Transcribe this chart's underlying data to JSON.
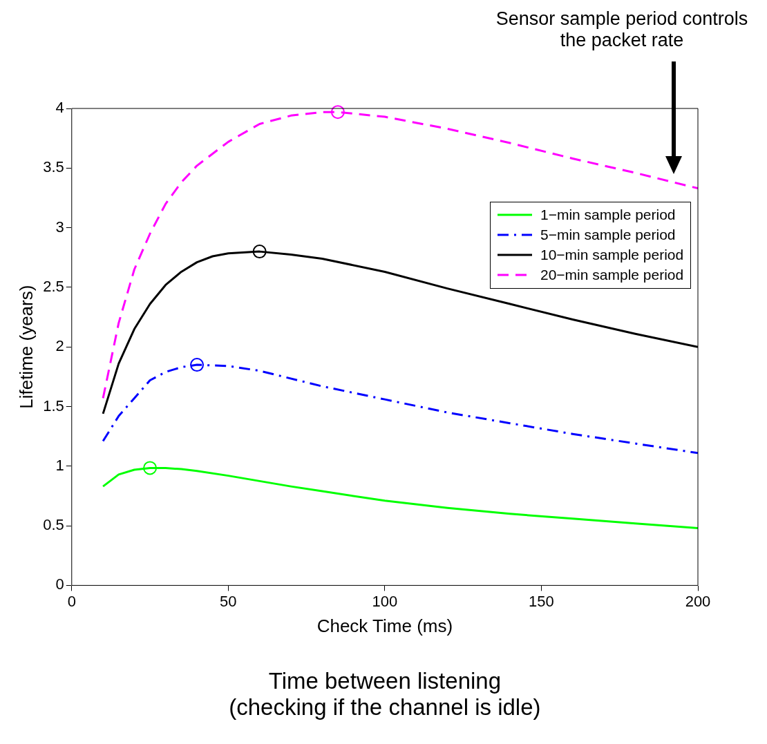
{
  "chart_data": {
    "type": "line",
    "xlabel": "Check Time (ms)",
    "ylabel": "Lifetime (years)",
    "xlim": [
      0,
      200
    ],
    "xticks": [
      0,
      50,
      100,
      150,
      200
    ],
    "ylim": [
      0,
      4
    ],
    "yticks": [
      0,
      0.5,
      1,
      1.5,
      2,
      2.5,
      3,
      3.5,
      4
    ],
    "grid": false,
    "legend": "top right",
    "marker": "none",
    "series": [
      {
        "name": "1−min sample period",
        "color": "#00ff00",
        "line_style": "solid",
        "x": [
          10,
          15,
          20,
          25,
          30,
          35,
          40,
          50,
          60,
          70,
          80,
          100,
          120,
          140,
          160,
          180,
          200
        ],
        "values": [
          0.83,
          0.93,
          0.97,
          0.985,
          0.985,
          0.975,
          0.96,
          0.92,
          0.875,
          0.83,
          0.79,
          0.71,
          0.65,
          0.6,
          0.56,
          0.52,
          0.48
        ]
      },
      {
        "name": "5−min sample period",
        "color": "#0000ff",
        "line_style": "dashdot",
        "x": [
          10,
          15,
          20,
          25,
          30,
          35,
          40,
          50,
          60,
          80,
          100,
          120,
          140,
          160,
          180,
          200
        ],
        "values": [
          1.21,
          1.42,
          1.57,
          1.72,
          1.79,
          1.83,
          1.85,
          1.84,
          1.8,
          1.67,
          1.56,
          1.45,
          1.36,
          1.27,
          1.19,
          1.11
        ]
      },
      {
        "name": "10−min sample period",
        "color": "#000000",
        "line_style": "solid",
        "x": [
          10,
          15,
          20,
          25,
          30,
          35,
          40,
          45,
          50,
          60,
          70,
          80,
          100,
          120,
          140,
          160,
          180,
          200
        ],
        "values": [
          1.44,
          1.86,
          2.15,
          2.36,
          2.52,
          2.63,
          2.71,
          2.76,
          2.785,
          2.8,
          2.775,
          2.74,
          2.63,
          2.49,
          2.36,
          2.23,
          2.11,
          2.0
        ]
      },
      {
        "name": "20−min sample period",
        "color": "#ff00ff",
        "line_style": "dashed",
        "x": [
          10,
          15,
          20,
          25,
          30,
          35,
          40,
          50,
          60,
          70,
          80,
          85,
          100,
          120,
          140,
          160,
          180,
          200
        ],
        "values": [
          1.57,
          2.2,
          2.65,
          2.95,
          3.2,
          3.38,
          3.52,
          3.72,
          3.87,
          3.94,
          3.97,
          3.97,
          3.93,
          3.83,
          3.71,
          3.58,
          3.46,
          3.33
        ]
      },
      {
        "type": "scatter",
        "marker": "circle",
        "x": [
          25,
          40,
          60,
          85
        ],
        "values": [
          0.985,
          1.85,
          2.8,
          3.97
        ],
        "colors": [
          "#00ff00",
          "#0000ff",
          "#000000",
          "#ff00ff"
        ]
      }
    ],
    "annotations": [
      "Sensor sample period controls the packet rate",
      "Time between listening (checking if the channel is idle)"
    ]
  }
}
